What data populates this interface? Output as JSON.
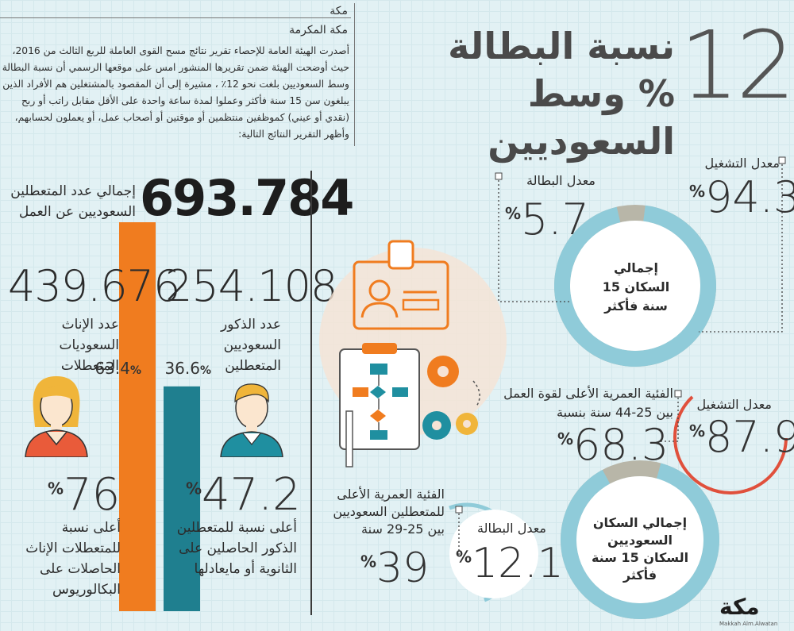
{
  "header": {
    "city": "مكة",
    "subcity": "مكة المكرمة",
    "big_number": "12",
    "title_line1": "نسبة البطالة",
    "title_line2": "% وسط السعوديين",
    "intro": "أصدرت الهيئة العامة للإحصاء تقرير نتائج مسح القوى العاملة للربع الثالث من 2016، حيث أوضحت الهيئة ضمن تقريرها المنشور امس على موقعها الرسمي أن نسبة البطالة وسط السعوديين بلغت نحو 12٪ ، مشيرة إلى أن المقصود بالمشتغلين هم الأفراد الذين يبلغون سن 15 سنة فأكثر وعملوا لمدة ساعة واحدة على الأقل مقابل راتب أو ربح (نقدي أو عيني) كموظفين منتظمين أو موقتين أو أصحاب عمل، أو يعملون لحسابهم، وأظهر التقرير النتائج التالية:"
  },
  "total": {
    "label": "إجمالي عدد المتعطلين السعوديين عن العمل",
    "value": "693.784"
  },
  "chart_data": {
    "type": "bar",
    "title": "إجمالي عدد المتعطلين السعوديين عن العمل",
    "categories": [
      "عدد الإناث السعوديات المتعطلات",
      "عدد الذكور السعوديين المتعطلين"
    ],
    "values": [
      439.676,
      254.108
    ],
    "percent": [
      63.4,
      36.6
    ],
    "colors": [
      "#f07c1f",
      "#1f7f8f"
    ]
  },
  "female": {
    "count": "439.676",
    "label": "عدد الإناث السعوديات المتعطلات",
    "percent": "63.4",
    "edu_value": "76",
    "edu_label": "أعلى نسبة للمتعطلات الإناث الحاصلات على البكالوريوس"
  },
  "male": {
    "count": "254.108",
    "label": "عدد الذكور السعوديين المتعطلين",
    "percent": "36.6",
    "edu_value": "47.2",
    "edu_label": "أعلى نسبة للمتعطلين الذكور الحاصلين على الثانوية أو مايعادلها"
  },
  "all_pop": {
    "employment_label": "معدل التشغيل",
    "employment_value": "94.3",
    "unemployment_label": "معدل البطالة",
    "unemployment_value": "5.7",
    "ring_label": "إجمالي السكان 15 سنة فأكثر",
    "employment_fraction": 0.943
  },
  "saudi_pop": {
    "age_group_label": "الفئية العمرية الأعلى لقوة العمل بين 25-44 سنة بنسبة",
    "age_group_value": "68.3",
    "employment_label": "معدل التشغيل",
    "employment_value": "87.9",
    "ring_label": "إجمالي السكان السعوديين السكان 15 سنة فأكثر",
    "employment_fraction": 0.879,
    "unemployment_label": "معدل البطالة",
    "unemployment_value": "12.1",
    "unemp_age_label": "الفئية العمرية الأعلى للمتعطلين السعوديين بين 25-29 سنة",
    "unemp_age_value": "39"
  },
  "footer": {
    "logo": "مكة",
    "credit": "Makkah Alm.Alwatan"
  },
  "colors": {
    "orange": "#f07c1f",
    "teal": "#1f7f8f",
    "ring": "#8fcbd9",
    "ring_gap": "#b8b6a8",
    "red": "#e0503c"
  }
}
